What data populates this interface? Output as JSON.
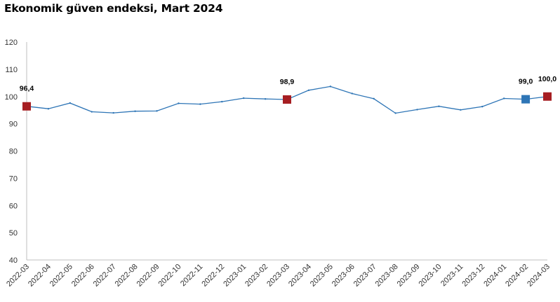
{
  "title": "Ekonomik güven endeksi, Mart 2024",
  "colors": {
    "line": "#2E75B6",
    "highlight_red": "#A61E22",
    "highlight_blue": "#2E75B6",
    "axis": "#bfbfbf"
  },
  "chart_data": {
    "type": "line",
    "title": "Ekonomik güven endeksi, Mart 2024",
    "xlabel": "",
    "ylabel": "",
    "ylim": [
      40,
      120
    ],
    "yticks": [
      40,
      50,
      60,
      70,
      80,
      90,
      100,
      110,
      120
    ],
    "grid": false,
    "categories": [
      "2022-03",
      "2022-04",
      "2022-05",
      "2022-06",
      "2022-07",
      "2022-08",
      "2022-09",
      "2022-10",
      "2022-11",
      "2022-12",
      "2023-01",
      "2023-02",
      "2023-03",
      "2023-04",
      "2023-05",
      "2023-06",
      "2023-07",
      "2023-08",
      "2023-09",
      "2023-10",
      "2023-11",
      "2023-12",
      "2024-01",
      "2024-02",
      "2024-03"
    ],
    "series": [
      {
        "values": [
          96.4,
          95.5,
          97.6,
          94.4,
          94.0,
          94.6,
          94.7,
          97.5,
          97.2,
          98.1,
          99.4,
          99.1,
          98.9,
          102.3,
          103.7,
          101.1,
          99.2,
          93.9,
          95.2,
          96.4,
          95.1,
          96.3,
          99.3,
          99.0,
          100.0
        ]
      }
    ],
    "highlights": [
      {
        "category": "2022-03",
        "value": 96.4,
        "label": "96,4",
        "color": "red"
      },
      {
        "category": "2023-03",
        "value": 98.9,
        "label": "98,9",
        "color": "red"
      },
      {
        "category": "2024-02",
        "value": 99.0,
        "label": "99,0",
        "color": "blue"
      },
      {
        "category": "2024-03",
        "value": 100.0,
        "label": "100,0",
        "color": "red"
      }
    ]
  }
}
